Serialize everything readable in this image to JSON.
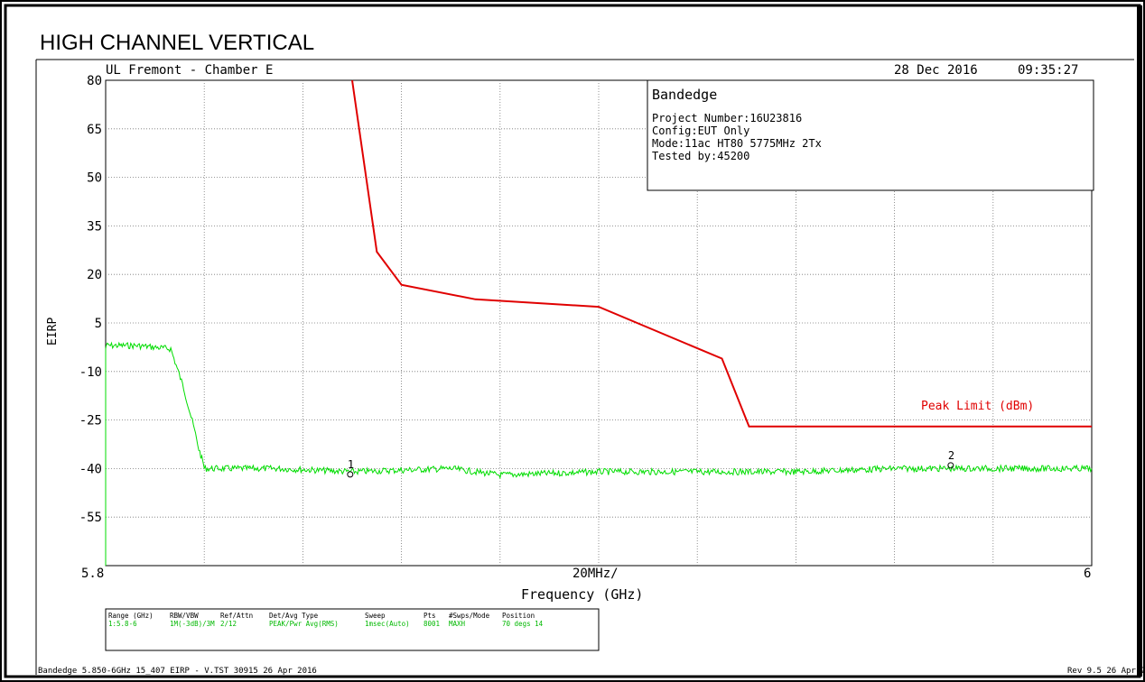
{
  "header": {
    "title": "HIGH CHANNEL VERTICAL",
    "lab": "UL Fremont - Chamber E",
    "date": "28 Dec 2016",
    "time": "09:35:27"
  },
  "info_box": {
    "title": "Bandedge",
    "lines": [
      "Project Number:16U23816",
      "Config:EUT Only",
      "Mode:11ac HT80 5775MHz 2Tx",
      "Tested by:45200"
    ]
  },
  "footer": {
    "left": "Bandedge 5.850-6GHz 15_407 EIRP - V.TST 30915 26 Apr 2016",
    "right": "Rev 9.5 26 Apr 20"
  },
  "settings_table": {
    "headers": [
      "Range (GHz)",
      "RBW/VBW",
      "Ref/Attn",
      "Det/Avg Type",
      "Sweep",
      "Pts",
      "#Swps/Mode",
      "Position"
    ],
    "values": [
      "1:5.8-6",
      "1M(-3dB)/3M",
      "2/12",
      "PEAK/Pwr Avg(RMS)",
      "1msec(Auto)",
      "8001",
      "MAXH",
      "70 degs 14"
    ]
  },
  "chart_data": {
    "type": "line",
    "title": "HIGH CHANNEL VERTICAL",
    "xlabel": "Frequency (GHz)",
    "ylabel": "EIRP",
    "xlim": [
      5.8,
      6.0
    ],
    "ylim": [
      -70,
      80
    ],
    "x_tick_labels": [
      "5.8",
      "20MHz/",
      "6"
    ],
    "y_ticks": [
      80,
      65,
      50,
      35,
      20,
      5,
      -10,
      -25,
      -40,
      -55
    ],
    "grid": true,
    "series": [
      {
        "name": "Peak Limit (dBm)",
        "color": "#e00000",
        "x": [
          5.85,
          5.85,
          5.855,
          5.86,
          5.875,
          5.9,
          5.925,
          5.9305,
          6.0
        ],
        "y": [
          80,
          80,
          27,
          16.8,
          12.3,
          10,
          -6,
          -27,
          -27
        ]
      },
      {
        "name": "",
        "color": "#00dd00",
        "x": [
          5.8,
          5.8,
          5.8001,
          5.8064,
          5.8132,
          5.8158,
          5.818,
          5.8189,
          5.8199,
          5.82,
          5.835,
          5.85,
          5.87,
          5.88,
          5.9,
          5.92,
          5.94,
          5.96,
          5.98,
          6.0
        ],
        "y": [
          -70,
          -3,
          -2,
          -2,
          -3,
          -15,
          -28,
          -34,
          -39,
          -40,
          -40,
          -41,
          -40,
          -42,
          -41,
          -41,
          -41,
          -40,
          -40,
          -40
        ]
      }
    ],
    "markers": [
      {
        "label": "1",
        "x": 5.8496,
        "y": -41.8
      },
      {
        "label": "2",
        "x": 5.9714,
        "y": -39.0
      }
    ]
  }
}
